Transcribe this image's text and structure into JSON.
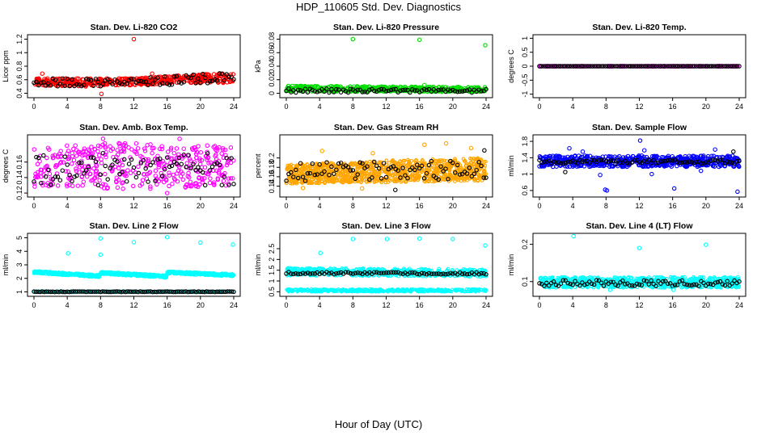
{
  "page": {
    "title": "HDP_110605  Std. Dev. Diagnostics",
    "x_title": "Hour of Day (UTC)"
  },
  "colors": {
    "red": "#ff0000",
    "green": "#00dd00",
    "magenta": "#ff00ff",
    "orange": "#ffa500",
    "blue": "#0000ff",
    "cyan": "#00ffff",
    "black": "#000000"
  },
  "chart_data": [
    {
      "id": "co2",
      "type": "scatter",
      "title": "Stan. Dev. Li-820 CO2",
      "ylabel": "Licor ppm",
      "xlim": [
        0,
        24
      ],
      "ylim": [
        0.37,
        1.23
      ],
      "xticks": [
        0,
        4,
        8,
        12,
        16,
        20,
        24
      ],
      "yticks": [
        0.4,
        0.6,
        0.8,
        1.0,
        1.2
      ],
      "series": [
        {
          "color": "red",
          "band": [
            [
              0,
              0.52,
              0.62
            ],
            [
              6,
              0.5,
              0.62
            ],
            [
              12,
              0.52,
              0.62
            ],
            [
              18,
              0.55,
              0.67
            ],
            [
              24,
              0.55,
              0.7
            ]
          ],
          "count": 460
        },
        {
          "color": "black",
          "band": [
            [
              0,
              0.5,
              0.62
            ],
            [
              12,
              0.5,
              0.62
            ],
            [
              24,
              0.55,
              0.72
            ]
          ],
          "count": 85,
          "xstep": 0.25
        },
        {
          "color": "red",
          "points": [
            [
              12.0,
              1.2
            ],
            [
              8.1,
              0.39
            ],
            [
              1.0,
              0.69
            ],
            [
              14.2,
              0.69
            ]
          ]
        }
      ]
    },
    {
      "id": "pressure",
      "type": "scatter",
      "title": "Stan. Dev. Li-820 Pressure",
      "ylabel": "kPa",
      "xlim": [
        0,
        24
      ],
      "ylim": [
        -0.003,
        0.083
      ],
      "xticks": [
        0,
        4,
        8,
        12,
        16,
        20,
        24
      ],
      "yticks": [
        0.0,
        0.02,
        0.04,
        0.06,
        0.08
      ],
      "series": [
        {
          "color": "green",
          "band": [
            [
              0,
              0.003,
              0.011
            ],
            [
              24,
              0.002,
              0.009
            ]
          ],
          "count": 460
        },
        {
          "color": "black",
          "band": [
            [
              0,
              0.001,
              0.007
            ],
            [
              24,
              0.001,
              0.006
            ]
          ],
          "count": 85,
          "xstep": 0.25
        },
        {
          "color": "green",
          "points": [
            [
              8.0,
              0.08
            ],
            [
              16.0,
              0.079
            ],
            [
              23.9,
              0.071
            ],
            [
              16.6,
              0.012
            ]
          ]
        }
      ]
    },
    {
      "id": "temp",
      "type": "scatter",
      "title": "Stan. Dev. Li-820 Temp.",
      "ylabel": "degrees C",
      "xlim": [
        0,
        24
      ],
      "ylim": [
        -1.04,
        1.04
      ],
      "xticks": [
        0,
        4,
        8,
        12,
        16,
        20,
        24
      ],
      "yticks": [
        -1.0,
        -0.5,
        0.0,
        0.5,
        1.0
      ],
      "series": [
        {
          "color": "magenta",
          "band": [
            [
              0,
              0.0,
              0.0
            ],
            [
              24,
              0.0,
              0.0
            ]
          ],
          "count": 180
        },
        {
          "color": "black",
          "band": [
            [
              0,
              0.0,
              0.0
            ],
            [
              24,
              0.0,
              0.0
            ]
          ],
          "count": 95,
          "xstep": 0.25
        }
      ]
    },
    {
      "id": "ambbox",
      "type": "scatter",
      "title": "Stan. Dev. Amb. Box Temp.",
      "ylabel": "degrees C",
      "xlim": [
        0,
        24
      ],
      "ylim": [
        0.118,
        0.192
      ],
      "xticks": [
        0,
        4,
        8,
        12,
        16,
        20,
        24
      ],
      "yticks": [
        0.12,
        0.14,
        0.16
      ],
      "series": [
        {
          "color": "magenta",
          "band": [
            [
              0,
              0.128,
              0.182
            ],
            [
              12,
              0.125,
              0.185
            ],
            [
              24,
              0.128,
              0.18
            ]
          ],
          "count": 420
        },
        {
          "color": "black",
          "band": [
            [
              0,
              0.13,
              0.172
            ],
            [
              24,
              0.13,
              0.172
            ]
          ],
          "count": 85,
          "xstep": 0.25
        },
        {
          "color": "magenta",
          "points": [
            [
              8.3,
              0.19
            ],
            [
              17.5,
              0.19
            ],
            [
              16.0,
              0.12
            ]
          ]
        }
      ]
    },
    {
      "id": "rh",
      "type": "scatter",
      "title": "Stan. Dev. Gas Stream RH",
      "ylabel": "percent",
      "xlim": [
        0,
        24
      ],
      "ylim": [
        0.122,
        0.244
      ],
      "xticks": [
        0,
        4,
        8,
        12,
        16,
        20,
        24
      ],
      "yticks": [
        0.14,
        0.16,
        0.18,
        0.2
      ],
      "series": [
        {
          "color": "orange",
          "band": [
            [
              0,
              0.145,
              0.185
            ],
            [
              12,
              0.148,
              0.195
            ],
            [
              24,
              0.15,
              0.2
            ]
          ],
          "count": 1100,
          "size": 1.8
        },
        {
          "color": "black",
          "band": [
            [
              0,
              0.15,
              0.19
            ],
            [
              24,
              0.155,
              0.195
            ]
          ],
          "count": 85,
          "xstep": 0.25
        },
        {
          "color": "orange",
          "points": [
            [
              16.6,
              0.228
            ],
            [
              19.2,
              0.231
            ],
            [
              22.2,
              0.221
            ],
            [
              4.3,
              0.215
            ],
            [
              10.4,
              0.21
            ],
            [
              2.0,
              0.136
            ],
            [
              9.1,
              0.135
            ]
          ]
        },
        {
          "color": "black",
          "points": [
            [
              23.8,
              0.216
            ],
            [
              13.1,
              0.132
            ]
          ]
        }
      ]
    },
    {
      "id": "sampleflow",
      "type": "scatter",
      "title": "Stan. Dev. Sample Flow",
      "ylabel": "ml/min",
      "xlim": [
        0,
        24
      ],
      "ylim": [
        0.5,
        1.9
      ],
      "xticks": [
        0,
        4,
        8,
        12,
        16,
        20,
        24
      ],
      "yticks": [
        0.6,
        1.0,
        1.4,
        1.8
      ],
      "series": [
        {
          "color": "blue",
          "band": [
            [
              0,
              1.18,
              1.45
            ],
            [
              24,
              1.18,
              1.45
            ]
          ],
          "count": 600
        },
        {
          "color": "black",
          "band": [
            [
              0,
              1.25,
              1.35
            ],
            [
              24,
              1.25,
              1.35
            ]
          ],
          "count": 85,
          "xstep": 0.25
        },
        {
          "color": "blue",
          "points": [
            [
              12.1,
              1.82
            ],
            [
              7.9,
              0.62
            ],
            [
              8.1,
              0.6
            ],
            [
              16.2,
              0.65
            ],
            [
              23.8,
              0.57
            ],
            [
              3.6,
              1.63
            ],
            [
              5.2,
              1.55
            ],
            [
              12.6,
              1.58
            ],
            [
              21.1,
              1.6
            ],
            [
              13.5,
              1.0
            ],
            [
              7.3,
              0.98
            ],
            [
              19.4,
              1.08
            ]
          ]
        },
        {
          "color": "black",
          "points": [
            [
              23.3,
              1.55
            ],
            [
              3.1,
              1.05
            ]
          ]
        }
      ]
    },
    {
      "id": "line2",
      "type": "scatter",
      "title": "Stan. Dev. Line 2 Flow",
      "ylabel": "ml/min",
      "xlim": [
        0,
        24
      ],
      "ylim": [
        0.85,
        5.15
      ],
      "xticks": [
        0,
        4,
        8,
        12,
        16,
        20,
        24
      ],
      "yticks": [
        1,
        2,
        3,
        4,
        5
      ],
      "series": [
        {
          "color": "cyan",
          "band": [
            [
              0,
              2.38,
              2.55
            ],
            [
              7.9,
              2.08,
              2.25
            ],
            [
              8.0,
              2.32,
              2.5
            ],
            [
              15.9,
              2.05,
              2.22
            ],
            [
              16.0,
              2.35,
              2.52
            ],
            [
              24,
              2.15,
              2.32
            ]
          ],
          "count": 700,
          "size": 1.9
        },
        {
          "color": "cyan",
          "band": [
            [
              0,
              0.97,
              1.05
            ],
            [
              24,
              0.97,
              1.05
            ]
          ],
          "count": 260,
          "size": 1.7
        },
        {
          "color": "black",
          "band": [
            [
              0,
              0.99,
              1.03
            ],
            [
              24,
              0.99,
              1.03
            ]
          ],
          "count": 97,
          "xstep": 0.25
        },
        {
          "color": "cyan",
          "points": [
            [
              8.0,
              4.95
            ],
            [
              16.0,
              5.05
            ],
            [
              12.0,
              4.68
            ],
            [
              20.0,
              4.65
            ],
            [
              23.9,
              4.5
            ],
            [
              4.1,
              3.85
            ],
            [
              8.0,
              3.75
            ]
          ]
        }
      ]
    },
    {
      "id": "line3",
      "type": "scatter",
      "title": "Stan. Dev. Line 3 Flow",
      "ylabel": "ml/min",
      "xlim": [
        0,
        24
      ],
      "ylim": [
        0.4,
        3.1
      ],
      "xticks": [
        0,
        4,
        8,
        12,
        16,
        20,
        24
      ],
      "yticks": [
        0.5,
        1.0,
        1.5,
        2.0,
        2.5
      ],
      "series": [
        {
          "color": "cyan",
          "band": [
            [
              0,
              1.25,
              1.6
            ],
            [
              24,
              1.2,
              1.55
            ]
          ],
          "count": 520,
          "size": 1.9
        },
        {
          "color": "cyan",
          "band": [
            [
              0,
              0.5,
              0.62
            ],
            [
              24,
              0.5,
              0.62
            ]
          ],
          "count": 420,
          "size": 1.7
        },
        {
          "color": "black",
          "band": [
            [
              0,
              1.32,
              1.42
            ],
            [
              24,
              1.3,
              1.4
            ]
          ],
          "count": 85,
          "xstep": 0.25
        },
        {
          "color": "cyan",
          "points": [
            [
              8.0,
              2.95
            ],
            [
              12.1,
              2.95
            ],
            [
              16.0,
              2.97
            ],
            [
              20.0,
              2.95
            ],
            [
              23.9,
              2.65
            ],
            [
              4.1,
              2.3
            ]
          ]
        }
      ]
    },
    {
      "id": "line4",
      "type": "scatter",
      "title": "Stan. Dev. Line 4 (LT) Flow",
      "ylabel": "ml/min",
      "xlim": [
        0,
        24
      ],
      "ylim": [
        0.067,
        0.223
      ],
      "xticks": [
        0,
        4,
        8,
        12,
        16,
        20,
        24
      ],
      "yticks": [
        0.1,
        0.2
      ],
      "series": [
        {
          "color": "cyan",
          "band": [
            [
              0,
              0.084,
              0.112
            ],
            [
              24,
              0.084,
              0.112
            ]
          ],
          "count": 700,
          "size": 1.9
        },
        {
          "color": "black",
          "band": [
            [
              0,
              0.088,
              0.104
            ],
            [
              24,
              0.088,
              0.104
            ]
          ],
          "count": 85,
          "xstep": 0.25
        },
        {
          "color": "cyan",
          "points": [
            [
              4.1,
              0.222
            ],
            [
              20.0,
              0.199
            ],
            [
              12.0,
              0.19
            ],
            [
              8.5,
              0.078
            ],
            [
              16.1,
              0.078
            ]
          ]
        }
      ]
    }
  ]
}
